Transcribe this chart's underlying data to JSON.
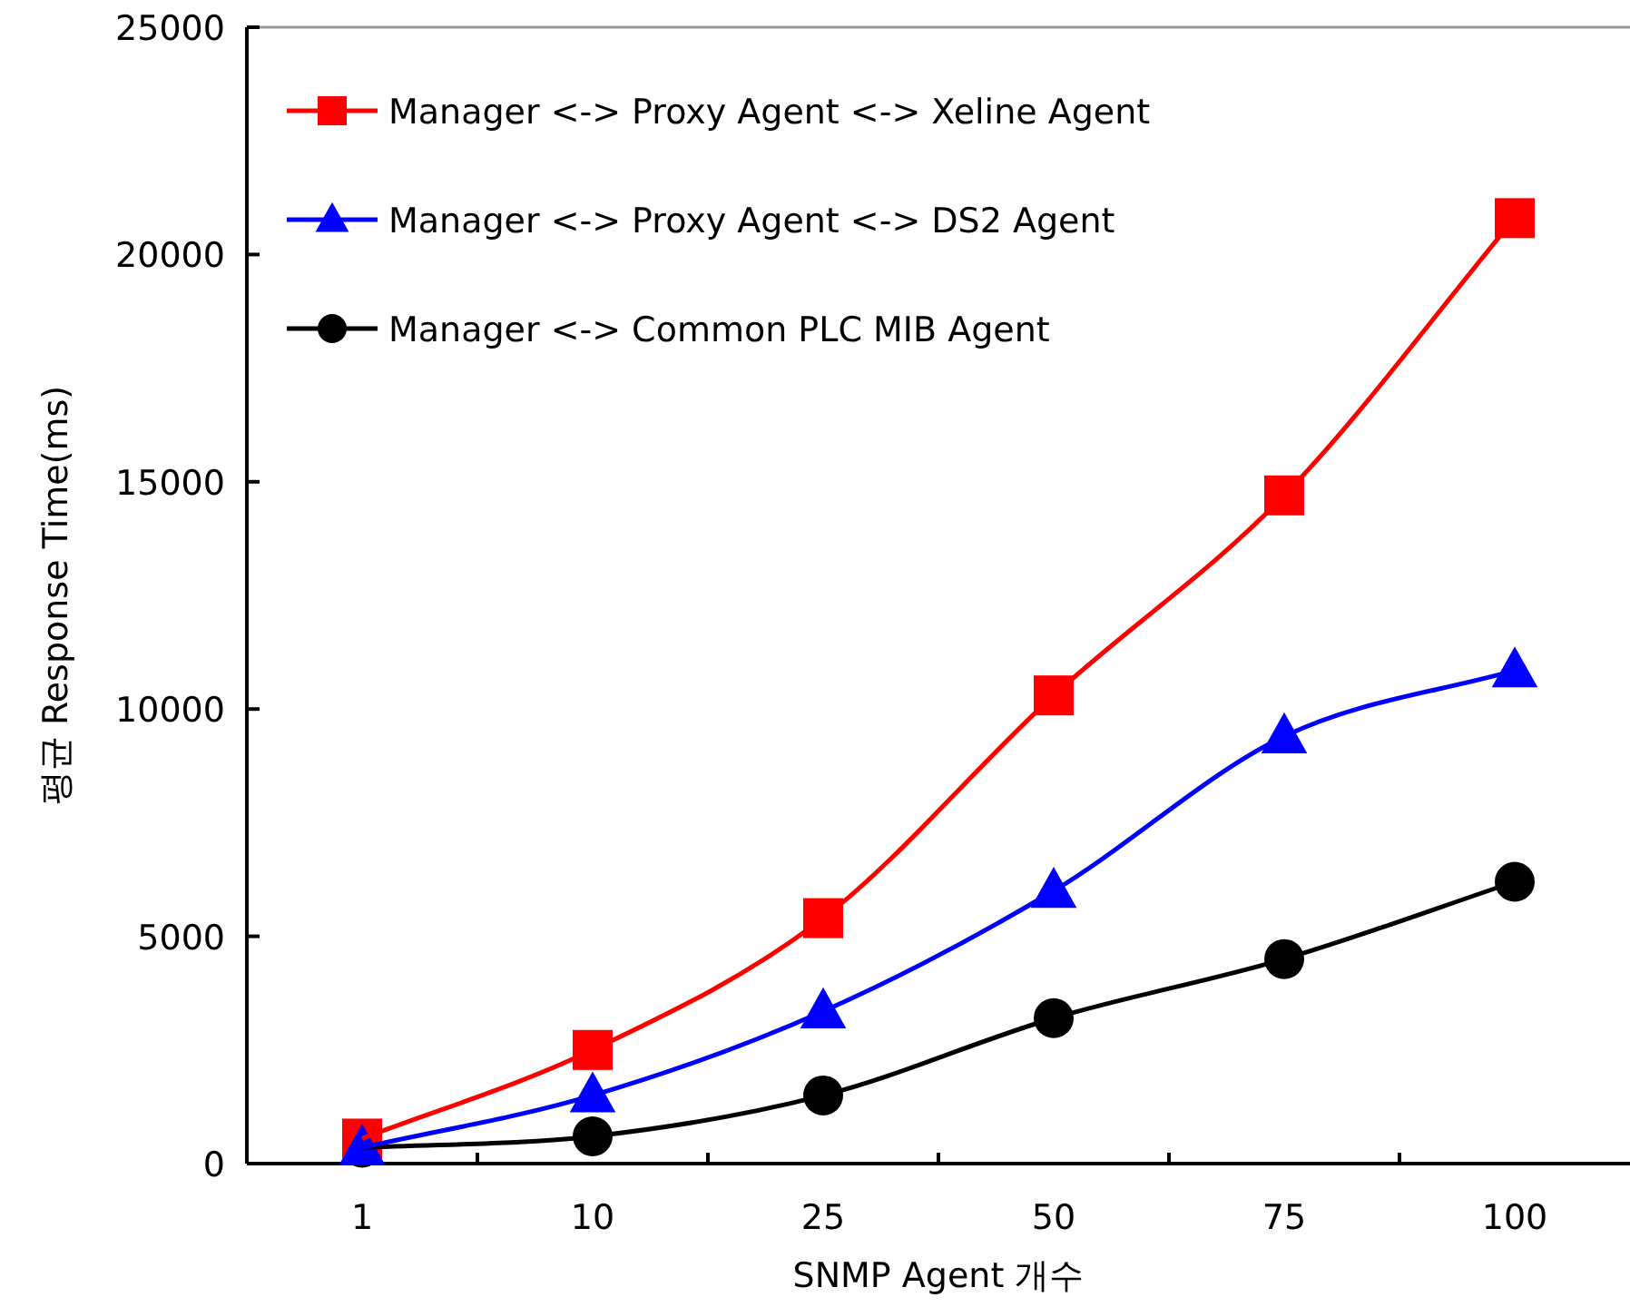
{
  "chart_data": {
    "type": "line",
    "xlabel": "SNMP Agent 개수",
    "ylabel": "평균 Response Time(ms)",
    "categories": [
      "1",
      "10",
      "25",
      "50",
      "75",
      "100"
    ],
    "ylim": [
      0,
      25000
    ],
    "yticks": [
      0,
      5000,
      10000,
      15000,
      20000,
      25000
    ],
    "legend": "top left",
    "grid": false,
    "series": [
      {
        "name": "Manager <-> Proxy Agent <-> Xeline Agent",
        "color": "#ff0000",
        "marker": "square",
        "values": [
          550,
          2500,
          5400,
          10300,
          14700,
          20800
        ]
      },
      {
        "name": "Manager <-> Proxy Agent <-> DS2 Agent",
        "color": "#0000ff",
        "marker": "triangle",
        "values": [
          350,
          1500,
          3350,
          6000,
          9400,
          10850
        ]
      },
      {
        "name": "Manager <-> Common PLC MIB Agent",
        "color": "#000000",
        "marker": "circle",
        "values": [
          350,
          600,
          1500,
          3200,
          4500,
          6200
        ]
      }
    ]
  }
}
